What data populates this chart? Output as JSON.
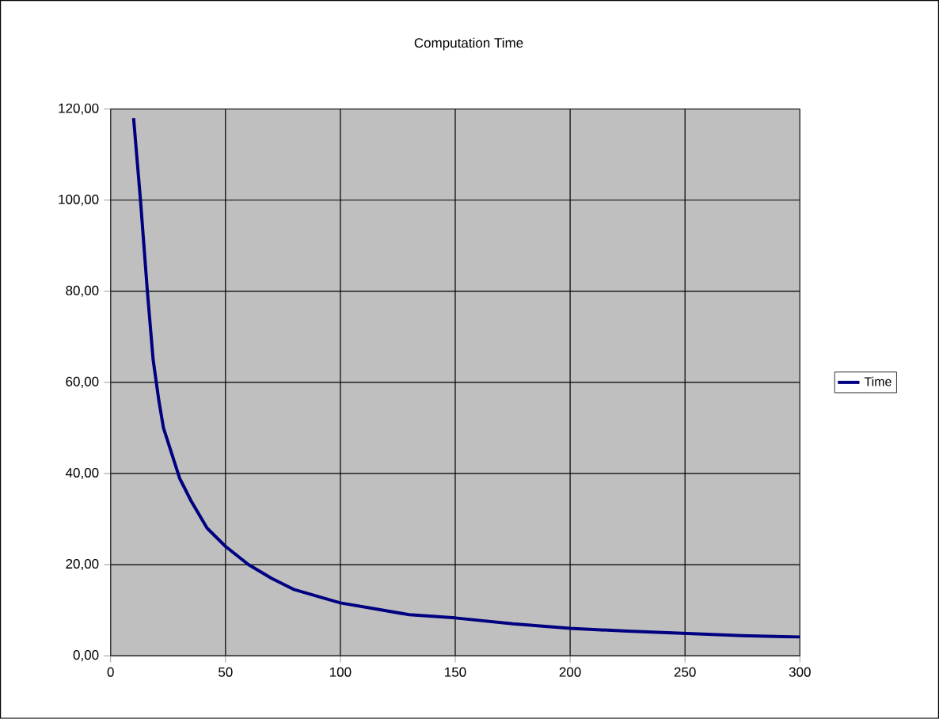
{
  "chart_data": {
    "type": "line",
    "title": "Computation Time",
    "x": [
      10,
      13,
      16,
      18.5,
      21,
      23,
      30,
      35,
      42,
      50,
      60,
      70,
      80,
      100,
      130,
      150,
      175,
      200,
      225,
      250,
      275,
      300
    ],
    "series": [
      {
        "name": "Time",
        "color": "#000080",
        "values": [
          118,
          100,
          80,
          65,
          56,
          50,
          39,
          34,
          28,
          24,
          20,
          17,
          14.5,
          11.6,
          9,
          8.3,
          7,
          6,
          5.4,
          4.9,
          4.4,
          4.1
        ]
      }
    ],
    "xlim": [
      0,
      300
    ],
    "xticks": [
      0,
      50,
      100,
      150,
      200,
      250,
      300
    ],
    "ylim": [
      0,
      120
    ],
    "yticks": [
      {
        "value": 0,
        "label": "0,00"
      },
      {
        "value": 20,
        "label": "20,00"
      },
      {
        "value": 40,
        "label": "40,00"
      },
      {
        "value": 60,
        "label": "60,00"
      },
      {
        "value": 80,
        "label": "80,00"
      },
      {
        "value": 100,
        "label": "100,00"
      },
      {
        "value": 120,
        "label": "120,00"
      }
    ],
    "grid": true,
    "legend": "right",
    "marker": "none",
    "line_style": "solid"
  }
}
